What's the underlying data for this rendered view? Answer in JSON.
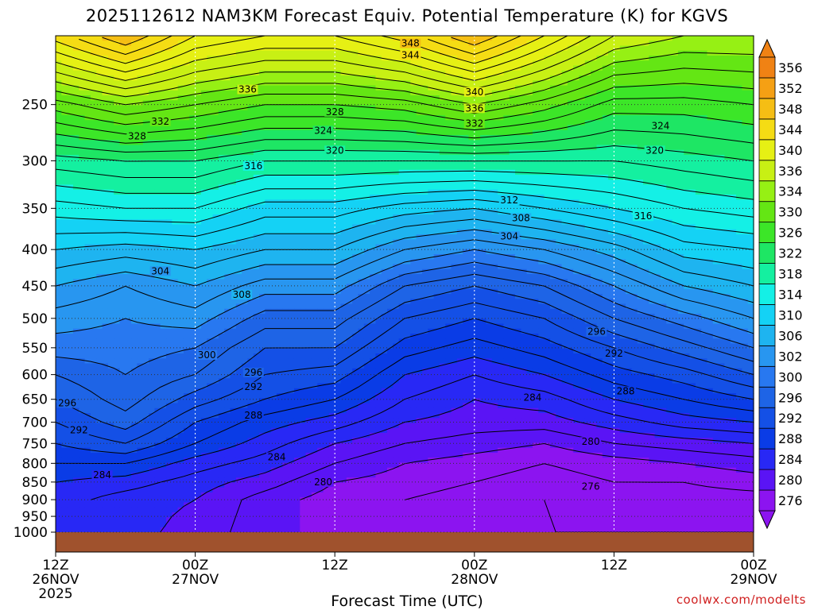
{
  "title": "2025112612 NAM3KM Forecast Equiv. Potential Temperature (K) for KGVS",
  "credit": "coolwx.com/modelts",
  "chart_data": {
    "type": "heatmap",
    "title": "2025112612 NAM3KM Forecast Equiv. Potential Temperature (K) for KGVS",
    "xlabel": "Forecast Time (UTC)",
    "ylabel": "",
    "x_ticks": [
      {
        "hours": 0,
        "line1": "12Z",
        "line2": "26NOV",
        "line3": "2025"
      },
      {
        "hours": 12,
        "line1": "00Z",
        "line2": "27NOV",
        "line3": ""
      },
      {
        "hours": 24,
        "line1": "12Z",
        "line2": "",
        "line3": ""
      },
      {
        "hours": 36,
        "line1": "00Z",
        "line2": "28NOV",
        "line3": ""
      },
      {
        "hours": 48,
        "line1": "12Z",
        "line2": "",
        "line3": ""
      },
      {
        "hours": 60,
        "line1": "00Z",
        "line2": "29NOV",
        "line3": ""
      }
    ],
    "y_ticks": [
      250,
      300,
      350,
      400,
      450,
      500,
      550,
      600,
      650,
      700,
      750,
      800,
      850,
      900,
      950,
      1000
    ],
    "ylim_hpa": [
      200,
      1000
    ],
    "grid": true,
    "colorbar": {
      "levels": [
        276,
        280,
        284,
        288,
        292,
        296,
        300,
        302,
        306,
        310,
        314,
        318,
        322,
        326,
        330,
        334,
        336,
        340,
        344,
        348,
        352,
        356
      ],
      "colors": [
        "#8c14f0",
        "#5a14f5",
        "#2828f5",
        "#0a3ce6",
        "#1450e6",
        "#1e64e6",
        "#2878f0",
        "#2896f0",
        "#1eb4f0",
        "#14d2f5",
        "#14f0e6",
        "#14f0a0",
        "#1ee664",
        "#3ce628",
        "#64e614",
        "#96f014",
        "#c8f014",
        "#e6f014",
        "#f5dc14",
        "#f5be14",
        "#f5a014",
        "#f08214"
      ]
    },
    "profiles": [
      {
        "hours": 0,
        "levels": [
          [
            1000,
            287
          ],
          [
            900,
            287
          ],
          [
            850,
            288
          ],
          [
            800,
            290
          ],
          [
            750,
            292
          ],
          [
            700,
            294
          ],
          [
            650,
            296
          ],
          [
            600,
            298
          ],
          [
            550,
            301
          ],
          [
            500,
            303
          ],
          [
            450,
            306
          ],
          [
            400,
            310
          ],
          [
            350,
            315
          ],
          [
            300,
            321
          ],
          [
            250,
            331
          ],
          [
            200,
            345
          ]
        ]
      },
      {
        "hours": 6,
        "levels": [
          [
            1000,
            285
          ],
          [
            900,
            285
          ],
          [
            850,
            287
          ],
          [
            800,
            290
          ],
          [
            750,
            294
          ],
          [
            700,
            297
          ],
          [
            650,
            299
          ],
          [
            600,
            300
          ],
          [
            550,
            301
          ],
          [
            500,
            302
          ],
          [
            450,
            304
          ],
          [
            400,
            309
          ],
          [
            350,
            316
          ],
          [
            300,
            322
          ],
          [
            250,
            334
          ],
          [
            200,
            350
          ]
        ]
      },
      {
        "hours": 12,
        "levels": [
          [
            1000,
            283
          ],
          [
            900,
            284
          ],
          [
            850,
            285
          ],
          [
            800,
            287
          ],
          [
            750,
            290
          ],
          [
            700,
            292
          ],
          [
            650,
            295
          ],
          [
            600,
            298
          ],
          [
            550,
            300
          ],
          [
            500,
            303
          ],
          [
            450,
            306
          ],
          [
            400,
            310
          ],
          [
            350,
            316
          ],
          [
            300,
            322
          ],
          [
            250,
            332
          ],
          [
            200,
            344
          ]
        ]
      },
      {
        "hours": 18,
        "levels": [
          [
            1000,
            281
          ],
          [
            900,
            281
          ],
          [
            850,
            283
          ],
          [
            800,
            285
          ],
          [
            750,
            287
          ],
          [
            700,
            289
          ],
          [
            650,
            292
          ],
          [
            600,
            294
          ],
          [
            550,
            296
          ],
          [
            500,
            299
          ],
          [
            450,
            303
          ],
          [
            400,
            308
          ],
          [
            350,
            313
          ],
          [
            300,
            320
          ],
          [
            250,
            330
          ],
          [
            200,
            342
          ]
        ]
      },
      {
        "hours": 24,
        "levels": [
          [
            1000,
            279
          ],
          [
            900,
            279
          ],
          [
            850,
            280
          ],
          [
            800,
            282
          ],
          [
            750,
            284
          ],
          [
            700,
            287
          ],
          [
            650,
            290
          ],
          [
            600,
            293
          ],
          [
            550,
            296
          ],
          [
            500,
            299
          ],
          [
            450,
            303
          ],
          [
            400,
            308
          ],
          [
            350,
            313
          ],
          [
            300,
            320
          ],
          [
            250,
            330
          ],
          [
            200,
            342
          ]
        ]
      },
      {
        "hours": 30,
        "levels": [
          [
            1000,
            278
          ],
          [
            900,
            278
          ],
          [
            850,
            279
          ],
          [
            800,
            280
          ],
          [
            750,
            282
          ],
          [
            700,
            284
          ],
          [
            650,
            286
          ],
          [
            600,
            288
          ],
          [
            550,
            291
          ],
          [
            500,
            294
          ],
          [
            450,
            298
          ],
          [
            400,
            304
          ],
          [
            350,
            311
          ],
          [
            300,
            320
          ],
          [
            250,
            331
          ],
          [
            200,
            345
          ]
        ]
      },
      {
        "hours": 36,
        "levels": [
          [
            1000,
            277
          ],
          [
            900,
            277
          ],
          [
            850,
            278
          ],
          [
            800,
            279
          ],
          [
            750,
            281
          ],
          [
            700,
            283
          ],
          [
            650,
            284
          ],
          [
            600,
            286
          ],
          [
            550,
            289
          ],
          [
            500,
            292
          ],
          [
            450,
            296
          ],
          [
            400,
            302
          ],
          [
            350,
            310
          ],
          [
            300,
            320
          ],
          [
            250,
            334
          ],
          [
            200,
            350
          ]
        ]
      },
      {
        "hours": 42,
        "levels": [
          [
            1000,
            276
          ],
          [
            900,
            276
          ],
          [
            850,
            277
          ],
          [
            800,
            278
          ],
          [
            750,
            280
          ],
          [
            700,
            283
          ],
          [
            650,
            285
          ],
          [
            600,
            288
          ],
          [
            550,
            291
          ],
          [
            500,
            294
          ],
          [
            450,
            298
          ],
          [
            400,
            304
          ],
          [
            350,
            312
          ],
          [
            300,
            320
          ],
          [
            250,
            331
          ],
          [
            200,
            344
          ]
        ]
      },
      {
        "hours": 48,
        "levels": [
          [
            1000,
            276
          ],
          [
            900,
            277
          ],
          [
            850,
            278
          ],
          [
            800,
            279
          ],
          [
            750,
            282
          ],
          [
            700,
            285
          ],
          [
            650,
            288
          ],
          [
            600,
            291
          ],
          [
            550,
            294
          ],
          [
            500,
            298
          ],
          [
            450,
            302
          ],
          [
            400,
            307
          ],
          [
            350,
            314
          ],
          [
            300,
            320
          ],
          [
            250,
            327
          ],
          [
            200,
            338
          ]
        ]
      },
      {
        "hours": 54,
        "levels": [
          [
            1000,
            276
          ],
          [
            900,
            277
          ],
          [
            850,
            278
          ],
          [
            800,
            280
          ],
          [
            750,
            283
          ],
          [
            700,
            287
          ],
          [
            650,
            290
          ],
          [
            600,
            293
          ],
          [
            550,
            297
          ],
          [
            500,
            301
          ],
          [
            450,
            306
          ],
          [
            400,
            311
          ],
          [
            350,
            316
          ],
          [
            300,
            321
          ],
          [
            250,
            327
          ],
          [
            200,
            336
          ]
        ]
      },
      {
        "hours": 60,
        "levels": [
          [
            1000,
            276
          ],
          [
            900,
            277
          ],
          [
            850,
            279
          ],
          [
            800,
            281
          ],
          [
            750,
            284
          ],
          [
            700,
            288
          ],
          [
            650,
            292
          ],
          [
            600,
            296
          ],
          [
            550,
            300
          ],
          [
            500,
            304
          ],
          [
            450,
            308
          ],
          [
            400,
            312
          ],
          [
            350,
            317
          ],
          [
            300,
            322
          ],
          [
            250,
            328
          ],
          [
            200,
            336
          ]
        ]
      }
    ],
    "contour_labels": [
      {
        "text": "348",
        "hours": 30.5,
        "hpa": 205
      },
      {
        "text": "344",
        "hours": 30.5,
        "hpa": 213
      },
      {
        "text": "336",
        "hours": 16.5,
        "hpa": 238
      },
      {
        "text": "340",
        "hours": 36,
        "hpa": 240
      },
      {
        "text": "332",
        "hours": 9,
        "hpa": 264
      },
      {
        "text": "328",
        "hours": 7,
        "hpa": 277
      },
      {
        "text": "328",
        "hours": 24,
        "hpa": 256
      },
      {
        "text": "336",
        "hours": 36,
        "hpa": 253
      },
      {
        "text": "332",
        "hours": 36,
        "hpa": 266
      },
      {
        "text": "324",
        "hours": 23,
        "hpa": 272
      },
      {
        "text": "320",
        "hours": 24,
        "hpa": 290
      },
      {
        "text": "324",
        "hours": 52,
        "hpa": 268
      },
      {
        "text": "320",
        "hours": 51.5,
        "hpa": 290
      },
      {
        "text": "316",
        "hours": 17,
        "hpa": 305
      },
      {
        "text": "312",
        "hours": 39,
        "hpa": 341
      },
      {
        "text": "308",
        "hours": 40,
        "hpa": 361
      },
      {
        "text": "304",
        "hours": 39,
        "hpa": 383
      },
      {
        "text": "316",
        "hours": 50.5,
        "hpa": 359
      },
      {
        "text": "304",
        "hours": 9,
        "hpa": 429
      },
      {
        "text": "308",
        "hours": 16,
        "hpa": 463
      },
      {
        "text": "296",
        "hours": 46.5,
        "hpa": 522
      },
      {
        "text": "292",
        "hours": 48,
        "hpa": 560
      },
      {
        "text": "300",
        "hours": 13,
        "hpa": 563
      },
      {
        "text": "296",
        "hours": 17,
        "hpa": 596
      },
      {
        "text": "292",
        "hours": 17,
        "hpa": 624
      },
      {
        "text": "288",
        "hours": 49,
        "hpa": 633
      },
      {
        "text": "284",
        "hours": 41,
        "hpa": 646
      },
      {
        "text": "296",
        "hours": 1,
        "hpa": 658
      },
      {
        "text": "288",
        "hours": 17,
        "hpa": 685
      },
      {
        "text": "292",
        "hours": 2,
        "hpa": 718
      },
      {
        "text": "280",
        "hours": 46,
        "hpa": 746
      },
      {
        "text": "284",
        "hours": 19,
        "hpa": 784
      },
      {
        "text": "284",
        "hours": 4,
        "hpa": 831
      },
      {
        "text": "280",
        "hours": 23,
        "hpa": 850
      },
      {
        "text": "276",
        "hours": 46,
        "hpa": 862
      }
    ]
  }
}
